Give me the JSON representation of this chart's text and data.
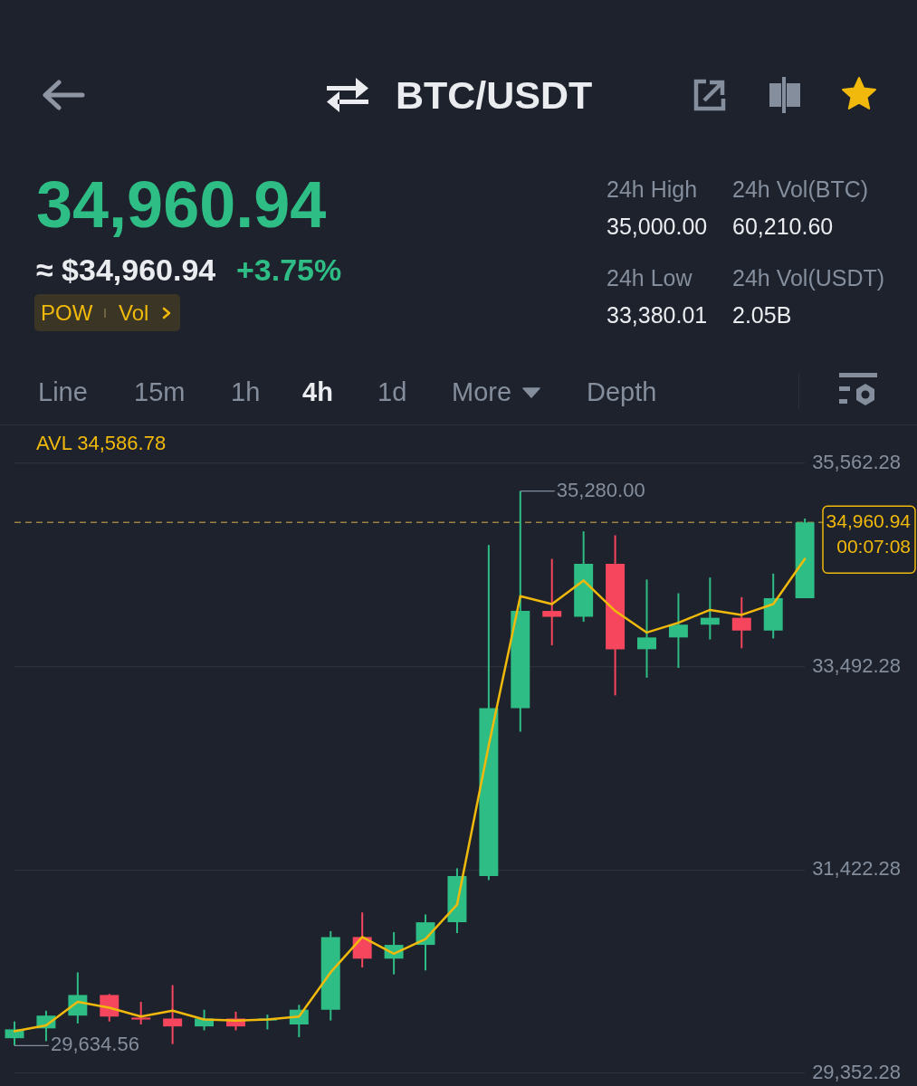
{
  "chart_data": [
    {
      "type": "other",
      "title": "BTC/USDT",
      "annotations": [
        "34,960.94",
        "≈ $34,960.94",
        "+3.75%",
        "POW",
        "Vol",
        "24h High",
        "35,000.00",
        "24h Vol(BTC)",
        "60,210.60",
        "24h Low",
        "33,380.01",
        "24h Vol(USDT)",
        "2.05B",
        "Line",
        "15m",
        "1h",
        "4h",
        "1d",
        "More",
        "Depth"
      ]
    },
    {
      "type": "candlestick",
      "categories": [
        null,
        null,
        null,
        null,
        null,
        null,
        null,
        null,
        null,
        null,
        null,
        null,
        null,
        null,
        null,
        null,
        null,
        null,
        null,
        null,
        null,
        null,
        null,
        null,
        null,
        null
      ],
      "ohlc": [
        [
          29710,
          29880,
          29634.56,
          29800
        ],
        [
          29810,
          29990,
          29680,
          29940
        ],
        [
          29940,
          30380,
          29860,
          30150
        ],
        [
          30150,
          30160,
          29880,
          29930
        ],
        [
          29920,
          30080,
          29850,
          29900
        ],
        [
          29910,
          30250,
          29650,
          29830
        ],
        [
          29830,
          30000,
          29790,
          29910
        ],
        [
          29910,
          29980,
          29790,
          29830
        ],
        [
          29890,
          29950,
          29800,
          29910
        ],
        [
          29850,
          30050,
          29720,
          30000
        ],
        [
          30000,
          30800,
          29890,
          30740
        ],
        [
          30740,
          30990,
          30430,
          30520
        ],
        [
          30520,
          30790,
          30360,
          30660
        ],
        [
          30660,
          30970,
          30400,
          30890
        ],
        [
          30890,
          31440,
          30780,
          31360
        ],
        [
          31360,
          34730,
          31320,
          33070
        ],
        [
          33070,
          35280,
          32830,
          34060
        ],
        [
          34060,
          34590,
          33710,
          34000
        ],
        [
          34000,
          34870,
          33950,
          34540
        ],
        [
          34540,
          34830,
          33200,
          33670
        ],
        [
          33670,
          34380,
          33380,
          33790
        ],
        [
          33790,
          34240,
          33480,
          33920
        ],
        [
          33920,
          34400,
          33770,
          33990
        ],
        [
          33990,
          34200,
          33680,
          33860
        ],
        [
          33860,
          34440,
          33780,
          34190
        ],
        [
          34190,
          35000,
          34190,
          34960.94
        ]
      ],
      "colors": [
        "#2ebd85",
        "#2ebd85",
        "#2ebd85",
        "#f6465d",
        "#f6465d",
        "#f6465d",
        "#2ebd85",
        "#f6465d",
        "#2ebd85",
        "#2ebd85",
        "#2ebd85",
        "#f6465d",
        "#2ebd85",
        "#2ebd85",
        "#2ebd85",
        "#2ebd85",
        "#2ebd85",
        "#f6465d",
        "#2ebd85",
        "#f6465d",
        "#2ebd85",
        "#2ebd85",
        "#2ebd85",
        "#f6465d",
        "#2ebd85",
        "#2ebd85"
      ],
      "series": [
        {
          "name": "AVL 34,586.78",
          "type": "line",
          "color": "#f0b90b",
          "values": [
            29780,
            29840,
            30080,
            30020,
            29930,
            29990,
            29900,
            29890,
            29900,
            29930,
            30380,
            30740,
            30570,
            30720,
            31070,
            32690,
            34210,
            34130,
            34370,
            34060,
            33840,
            33940,
            34070,
            34020,
            34130,
            34590
          ]
        }
      ],
      "ylim": [
        29352.28,
        35562.28
      ],
      "yticks": [
        {
          "value": 29352.28,
          "label": "29,352.28"
        },
        {
          "value": 31422.28,
          "label": "31,422.28"
        },
        {
          "value": 33492.28,
          "label": "33,492.28"
        },
        {
          "value": 35562.28,
          "label": "35,562.28"
        }
      ],
      "grid": "y",
      "tick_labels": "y",
      "annotations": [
        "35,280.00",
        "29,634.56"
      ],
      "ref_lines": [
        {
          "axis": "y",
          "value": 34960.94,
          "label": "34,960.94\n00:07:08",
          "color": "#9a8240",
          "line_style": "dashed"
        }
      ]
    }
  ]
}
